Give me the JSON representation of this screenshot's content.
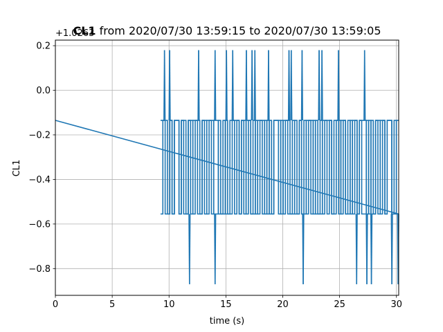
{
  "chart_data": {
    "type": "line",
    "title_bold": "CL1",
    "title_rest": " from 2020/07/30 13:59:15 to 2020/07/30 13:59:05",
    "xlabel": "time (s)",
    "ylabel": "CL1",
    "offset_label": "+1.0263",
    "xlim": [
      0,
      30.2
    ],
    "ylim": [
      -0.92,
      0.225
    ],
    "xticks": [
      0,
      5,
      10,
      15,
      20,
      25,
      30
    ],
    "yticks": [
      -0.8,
      -0.6,
      -0.4,
      -0.2,
      0.0,
      0.2
    ],
    "ytick_labels": [
      "−0.8",
      "−0.6",
      "−0.4",
      "−0.2",
      "0.0",
      "0.2"
    ],
    "grid": true,
    "series_color": "#1f77b4",
    "trend": {
      "x": [
        0,
        30.2
      ],
      "y": [
        -0.135,
        -0.555
      ]
    },
    "levels": {
      "high": 0.18,
      "mid": -0.135,
      "low": -0.555,
      "bottom": -0.87
    },
    "segment_start": 9.25,
    "segment_end": 30.2,
    "high_spikes": [
      9.6,
      10.05,
      12.6,
      14.05,
      15.05,
      15.6,
      16.8,
      17.3,
      17.55,
      18.75,
      20.55,
      20.75,
      21.7,
      23.2,
      23.45,
      24.9,
      27.2
    ],
    "low_spikes": [
      11.8,
      14.05,
      21.8,
      26.5,
      27.4,
      27.8,
      29.6,
      30.15
    ],
    "rows": [
      "1110101101001011101101011000100111010110101101010111011000101001101001011100110100101011101001011011001",
      "0100101101101101001011100101001101011010010110100110101101001010110100110101101101011010010101101011010"
    ]
  }
}
